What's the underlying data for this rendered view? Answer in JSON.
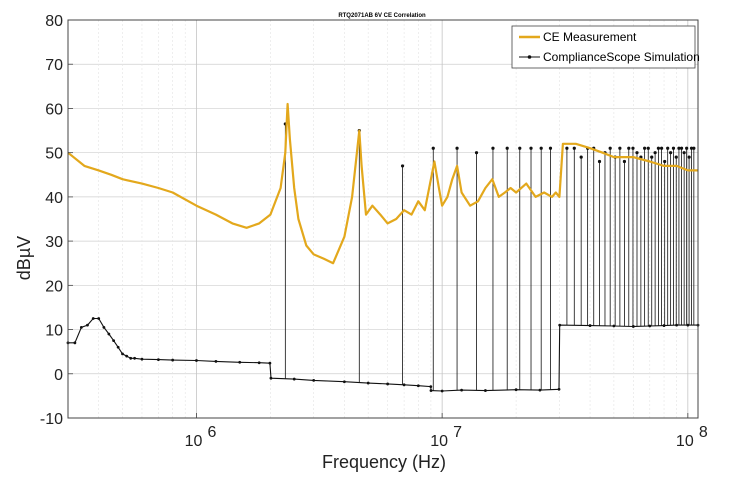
{
  "chart_data": {
    "type": "line",
    "title": "RTQ2071AB 6V CE Correlation",
    "xlabel": "Frequency (Hz)",
    "ylabel": "dBµV",
    "xscale": "log",
    "xlim": [
      300000,
      110000000
    ],
    "ylim": [
      -10,
      80
    ],
    "yticks": [
      -10,
      0,
      10,
      20,
      30,
      40,
      50,
      60,
      70,
      80
    ],
    "xticks": [
      {
        "value": 1000000,
        "base": "10",
        "exp": "6"
      },
      {
        "value": 10000000,
        "base": "10",
        "exp": "7"
      },
      {
        "value": 100000000,
        "base": "10",
        "exp": "8"
      }
    ],
    "grid": true,
    "legend_position": "top-right",
    "series": [
      {
        "name": "CE Measurement",
        "color": "#E3A81C",
        "marker": "none",
        "x": [
          300000,
          350000,
          400000,
          450000,
          500000,
          600000,
          700000,
          800000,
          1000000,
          1200000,
          1400000,
          1600000,
          1800000,
          2000000,
          2200000,
          2300000,
          2350000,
          2400000,
          2500000,
          2600000,
          2800000,
          3000000,
          3300000,
          3600000,
          4000000,
          4300000,
          4600000,
          4700000,
          4900000,
          5200000,
          5600000,
          6000000,
          6500000,
          7000000,
          7500000,
          8000000,
          8500000,
          9000000,
          9300000,
          9700000,
          10000000,
          10500000,
          11000000,
          11500000,
          12000000,
          13000000,
          14000000,
          15000000,
          16000000,
          17000000,
          18000000,
          19000000,
          20000000,
          22000000,
          24000000,
          26000000,
          28000000,
          29000000,
          30000000,
          31000000,
          35000000,
          40000000,
          45000000,
          50000000,
          60000000,
          70000000,
          80000000,
          90000000,
          100000000,
          110000000
        ],
        "y": [
          50,
          47,
          46,
          45,
          44,
          43,
          42,
          41,
          38,
          36,
          34,
          33,
          34,
          36,
          42,
          50,
          61,
          53,
          42,
          35,
          29,
          27,
          26,
          25,
          31,
          40,
          55,
          47,
          36,
          38,
          36,
          34,
          35,
          37,
          36,
          39,
          37,
          44,
          48,
          42,
          38,
          40,
          44,
          47,
          41,
          38,
          39,
          42,
          44,
          40,
          41,
          42,
          41,
          43,
          40,
          41,
          40,
          41,
          40,
          52,
          52,
          51,
          50,
          49,
          49,
          48,
          47,
          47,
          46,
          46
        ]
      },
      {
        "name": "ComplianceScope Simulation",
        "color": "#111111",
        "marker": "dot",
        "baseline_x": [
          300000,
          320000,
          340000,
          360000,
          380000,
          400000,
          420000,
          440000,
          460000,
          480000,
          500000,
          520000,
          540000,
          560000,
          600000,
          700000,
          800000,
          1000000,
          1200000,
          1500000,
          1800000,
          1990000,
          2010000,
          2500000,
          3000000,
          4000000,
          5000000,
          6000000,
          7000000,
          8000000,
          8990000,
          9010000,
          10000000,
          12000000,
          15000000,
          20000000,
          25000000,
          29900000,
          30100000,
          40000000,
          50000000,
          60000000,
          70000000,
          80000000,
          90000000,
          100000000,
          110000000
        ],
        "baseline_y": [
          7,
          7,
          10.5,
          11,
          12.5,
          12.5,
          10.5,
          9,
          7.5,
          6,
          4.5,
          4,
          3.5,
          3.5,
          3.3,
          3.2,
          3.1,
          3,
          2.8,
          2.6,
          2.5,
          2.4,
          -1,
          -1.2,
          -1.5,
          -1.8,
          -2.1,
          -2.3,
          -2.5,
          -2.7,
          -2.9,
          -3.8,
          -3.9,
          -3.7,
          -3.8,
          -3.6,
          -3.7,
          -3.5,
          11,
          10.9,
          10.8,
          10.7,
          10.8,
          10.9,
          11,
          11,
          11
        ],
        "spikes_x": [
          2300000,
          4600000,
          6900000,
          9200000,
          11500000,
          13800000,
          16100000,
          18400000,
          20700000,
          23000000,
          25300000,
          27600000,
          32200000,
          34500000,
          36800000,
          39100000,
          41400000,
          43700000,
          46000000,
          48300000,
          50600000,
          52900000,
          55200000,
          57500000,
          59800000,
          62100000,
          64400000,
          66700000,
          69000000,
          71300000,
          73600000,
          75900000,
          78200000,
          80500000,
          82800000,
          85100000,
          87400000,
          89700000,
          92000000,
          94300000,
          96600000,
          98900000,
          101200000,
          103500000,
          105800000
        ],
        "spikes_y": [
          56.5,
          55,
          47,
          51,
          51,
          50,
          51,
          51,
          51,
          51,
          51,
          51,
          51,
          51,
          49,
          51,
          51,
          48,
          50,
          51,
          49,
          51,
          48,
          51,
          51,
          50,
          49,
          51,
          51,
          49,
          50,
          51,
          51,
          48,
          51,
          50,
          51,
          49,
          51,
          51,
          50,
          51,
          49,
          51,
          51
        ]
      }
    ]
  }
}
